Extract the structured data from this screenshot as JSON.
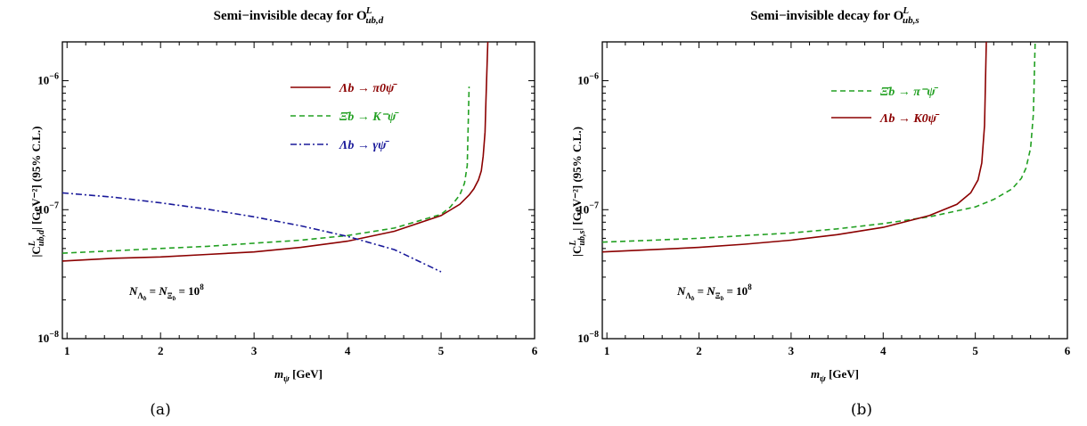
{
  "chart_data": [
    {
      "panel": "a",
      "caption": "(a)",
      "type": "line",
      "title": "Semi−invisible decay for O",
      "title_sup": "L",
      "title_sub": "ub,d",
      "xlabel": "m",
      "xlabel_sub": "ψ",
      "xlabel_unit": " [GeV]",
      "ylabel": "|C",
      "ylabel_sup": "L",
      "ylabel_sub": "ub,d",
      "ylabel_rest": "| [GeV⁻²] (95% C.L.)",
      "xlim": [
        0.95,
        6
      ],
      "ylim": [
        1e-08,
        2e-06
      ],
      "yscale": "log",
      "xticks": [
        "1",
        "2",
        "3",
        "4",
        "5",
        "6"
      ],
      "yticks": [
        {
          "base": "10",
          "exp": "−8"
        },
        {
          "base": "10",
          "exp": "−7"
        },
        {
          "base": "10",
          "exp": "−6"
        }
      ],
      "legend_position": "top-right",
      "annotation": "NΛ_b = NΞ_b = 10^8",
      "series": [
        {
          "name": "Λb → π0ψ̄",
          "color": "#8b0000",
          "dash": "solid",
          "x": [
            0.95,
            1.5,
            2.0,
            2.5,
            3.0,
            3.5,
            4.0,
            4.5,
            5.0,
            5.2,
            5.3,
            5.35,
            5.4,
            5.43,
            5.45,
            5.47,
            5.48,
            5.5
          ],
          "y": [
            4e-08,
            4.2e-08,
            4.3e-08,
            4.5e-08,
            4.7e-08,
            5.1e-08,
            5.7e-08,
            6.8e-08,
            9e-08,
            1.1e-07,
            1.3e-07,
            1.45e-07,
            1.7e-07,
            2e-07,
            2.6e-07,
            4e-07,
            7e-07,
            2e-06
          ]
        },
        {
          "name": "Ξ̄b → K⁻ψ̄",
          "color": "#22a022",
          "dash": "dashed",
          "x": [
            0.95,
            1.5,
            2.0,
            2.5,
            3.0,
            3.5,
            4.0,
            4.5,
            5.0,
            5.1,
            5.2,
            5.25,
            5.28,
            5.3
          ],
          "y": [
            4.6e-08,
            4.8e-08,
            5e-08,
            5.2e-08,
            5.5e-08,
            5.8e-08,
            6.3e-08,
            7.2e-08,
            9.2e-08,
            1.05e-07,
            1.3e-07,
            1.6e-07,
            2.2e-07,
            9e-07
          ]
        },
        {
          "name": "Λb → γψ̄",
          "color": "#1a1a9a",
          "dash": "dashdot",
          "x": [
            0.95,
            1.5,
            2.0,
            2.5,
            3.0,
            3.5,
            4.0,
            4.5,
            5.0
          ],
          "y": [
            1.35e-07,
            1.25e-07,
            1.13e-07,
            1.01e-07,
            8.8e-08,
            7.5e-08,
            6.2e-08,
            4.9e-08,
            3.3e-08
          ]
        }
      ]
    },
    {
      "panel": "b",
      "caption": "(b)",
      "type": "line",
      "title": "Semi−invisible decay for O",
      "title_sup": "L",
      "title_sub": "ub,s",
      "xlabel": "m",
      "xlabel_sub": "ψ",
      "xlabel_unit": " [GeV]",
      "ylabel": "|C",
      "ylabel_sup": "L",
      "ylabel_sub": "ub,s",
      "ylabel_rest": "| [GeV⁻²] (95% C.L.)",
      "xlim": [
        0.95,
        6
      ],
      "ylim": [
        1e-08,
        2e-06
      ],
      "yscale": "log",
      "xticks": [
        "1",
        "2",
        "3",
        "4",
        "5",
        "6"
      ],
      "yticks": [
        {
          "base": "10",
          "exp": "−8"
        },
        {
          "base": "10",
          "exp": "−7"
        },
        {
          "base": "10",
          "exp": "−6"
        }
      ],
      "legend_position": "top-right",
      "annotation": "NΛ_b = NΞ_b = 10^8",
      "series": [
        {
          "name": "Ξ̄b → π⁻ψ̄",
          "color": "#22a022",
          "dash": "dashed",
          "x": [
            0.95,
            1.5,
            2.0,
            2.5,
            3.0,
            3.5,
            4.0,
            4.5,
            5.0,
            5.2,
            5.4,
            5.5,
            5.55,
            5.6,
            5.63,
            5.65
          ],
          "y": [
            5.6e-08,
            5.8e-08,
            6e-08,
            6.3e-08,
            6.6e-08,
            7.1e-08,
            7.8e-08,
            8.8e-08,
            1.05e-07,
            1.2e-07,
            1.45e-07,
            1.75e-07,
            2.1e-07,
            3e-07,
            5.5e-07,
            2e-06
          ]
        },
        {
          "name": "Λb → K0ψ̄",
          "color": "#8b0000",
          "dash": "solid",
          "x": [
            0.95,
            1.5,
            2.0,
            2.5,
            3.0,
            3.5,
            4.0,
            4.5,
            4.8,
            4.95,
            5.03,
            5.07,
            5.1,
            5.12
          ],
          "y": [
            4.7e-08,
            4.9e-08,
            5.1e-08,
            5.4e-08,
            5.8e-08,
            6.4e-08,
            7.3e-08,
            9e-08,
            1.1e-07,
            1.35e-07,
            1.7e-07,
            2.3e-07,
            4.5e-07,
            2e-06
          ]
        }
      ]
    }
  ]
}
